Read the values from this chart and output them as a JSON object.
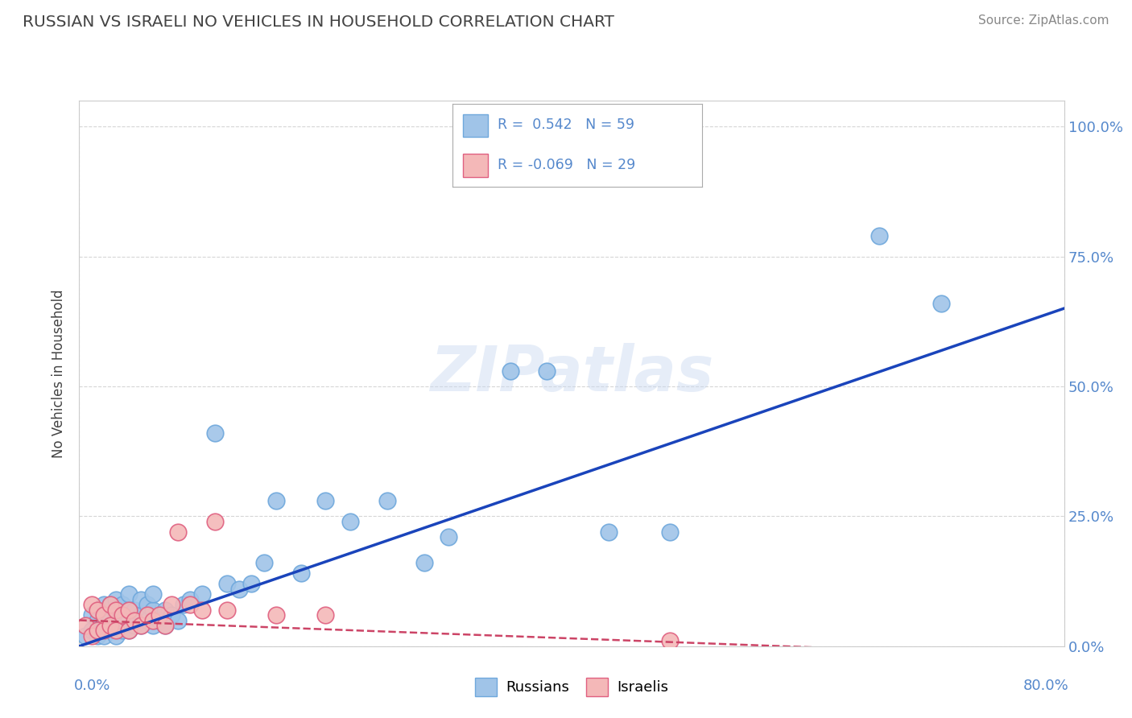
{
  "title": "RUSSIAN VS ISRAELI NO VEHICLES IN HOUSEHOLD CORRELATION CHART",
  "source": "Source: ZipAtlas.com",
  "ylabel": "No Vehicles in Household",
  "xlim": [
    0.0,
    0.8
  ],
  "ylim": [
    0.0,
    1.05
  ],
  "ytick_labels": [
    "0.0%",
    "25.0%",
    "50.0%",
    "75.0%",
    "100.0%"
  ],
  "ytick_values": [
    0.0,
    0.25,
    0.5,
    0.75,
    1.0
  ],
  "xtick_labels": [
    "0.0%",
    "80.0%"
  ],
  "xtick_values": [
    0.0,
    0.8
  ],
  "russian_R": 0.542,
  "russian_N": 59,
  "israeli_R": -0.069,
  "israeli_N": 29,
  "russian_color": "#a0c4e8",
  "russian_edge_color": "#6fa8dc",
  "israeli_color": "#f4b8b8",
  "israeli_edge_color": "#e06080",
  "russian_line_color": "#1a44bb",
  "israeli_line_color": "#cc4466",
  "watermark": "ZIPatlas",
  "background_color": "#ffffff",
  "grid_color": "#cccccc",
  "title_color": "#444444",
  "axis_label_color": "#5588cc",
  "russian_points_x": [
    0.005,
    0.01,
    0.01,
    0.015,
    0.015,
    0.02,
    0.02,
    0.02,
    0.02,
    0.025,
    0.025,
    0.025,
    0.03,
    0.03,
    0.03,
    0.03,
    0.035,
    0.035,
    0.035,
    0.04,
    0.04,
    0.04,
    0.04,
    0.045,
    0.045,
    0.05,
    0.05,
    0.05,
    0.055,
    0.055,
    0.06,
    0.06,
    0.06,
    0.065,
    0.07,
    0.07,
    0.075,
    0.08,
    0.085,
    0.09,
    0.1,
    0.11,
    0.12,
    0.13,
    0.14,
    0.15,
    0.16,
    0.18,
    0.2,
    0.22,
    0.25,
    0.28,
    0.3,
    0.35,
    0.38,
    0.43,
    0.48,
    0.65,
    0.7
  ],
  "russian_points_y": [
    0.02,
    0.03,
    0.06,
    0.02,
    0.05,
    0.02,
    0.04,
    0.06,
    0.08,
    0.03,
    0.05,
    0.08,
    0.02,
    0.04,
    0.06,
    0.09,
    0.03,
    0.05,
    0.08,
    0.03,
    0.05,
    0.07,
    0.1,
    0.04,
    0.07,
    0.04,
    0.06,
    0.09,
    0.05,
    0.08,
    0.04,
    0.07,
    0.1,
    0.05,
    0.04,
    0.07,
    0.06,
    0.05,
    0.08,
    0.09,
    0.1,
    0.41,
    0.12,
    0.11,
    0.12,
    0.16,
    0.28,
    0.14,
    0.28,
    0.24,
    0.28,
    0.16,
    0.21,
    0.53,
    0.53,
    0.22,
    0.22,
    0.79,
    0.66
  ],
  "israeli_points_x": [
    0.005,
    0.01,
    0.01,
    0.015,
    0.015,
    0.02,
    0.02,
    0.025,
    0.025,
    0.03,
    0.03,
    0.035,
    0.04,
    0.04,
    0.045,
    0.05,
    0.055,
    0.06,
    0.065,
    0.07,
    0.075,
    0.08,
    0.09,
    0.1,
    0.11,
    0.12,
    0.16,
    0.2,
    0.48
  ],
  "israeli_points_y": [
    0.04,
    0.02,
    0.08,
    0.03,
    0.07,
    0.03,
    0.06,
    0.04,
    0.08,
    0.03,
    0.07,
    0.06,
    0.03,
    0.07,
    0.05,
    0.04,
    0.06,
    0.05,
    0.06,
    0.04,
    0.08,
    0.22,
    0.08,
    0.07,
    0.24,
    0.07,
    0.06,
    0.06,
    0.01
  ]
}
